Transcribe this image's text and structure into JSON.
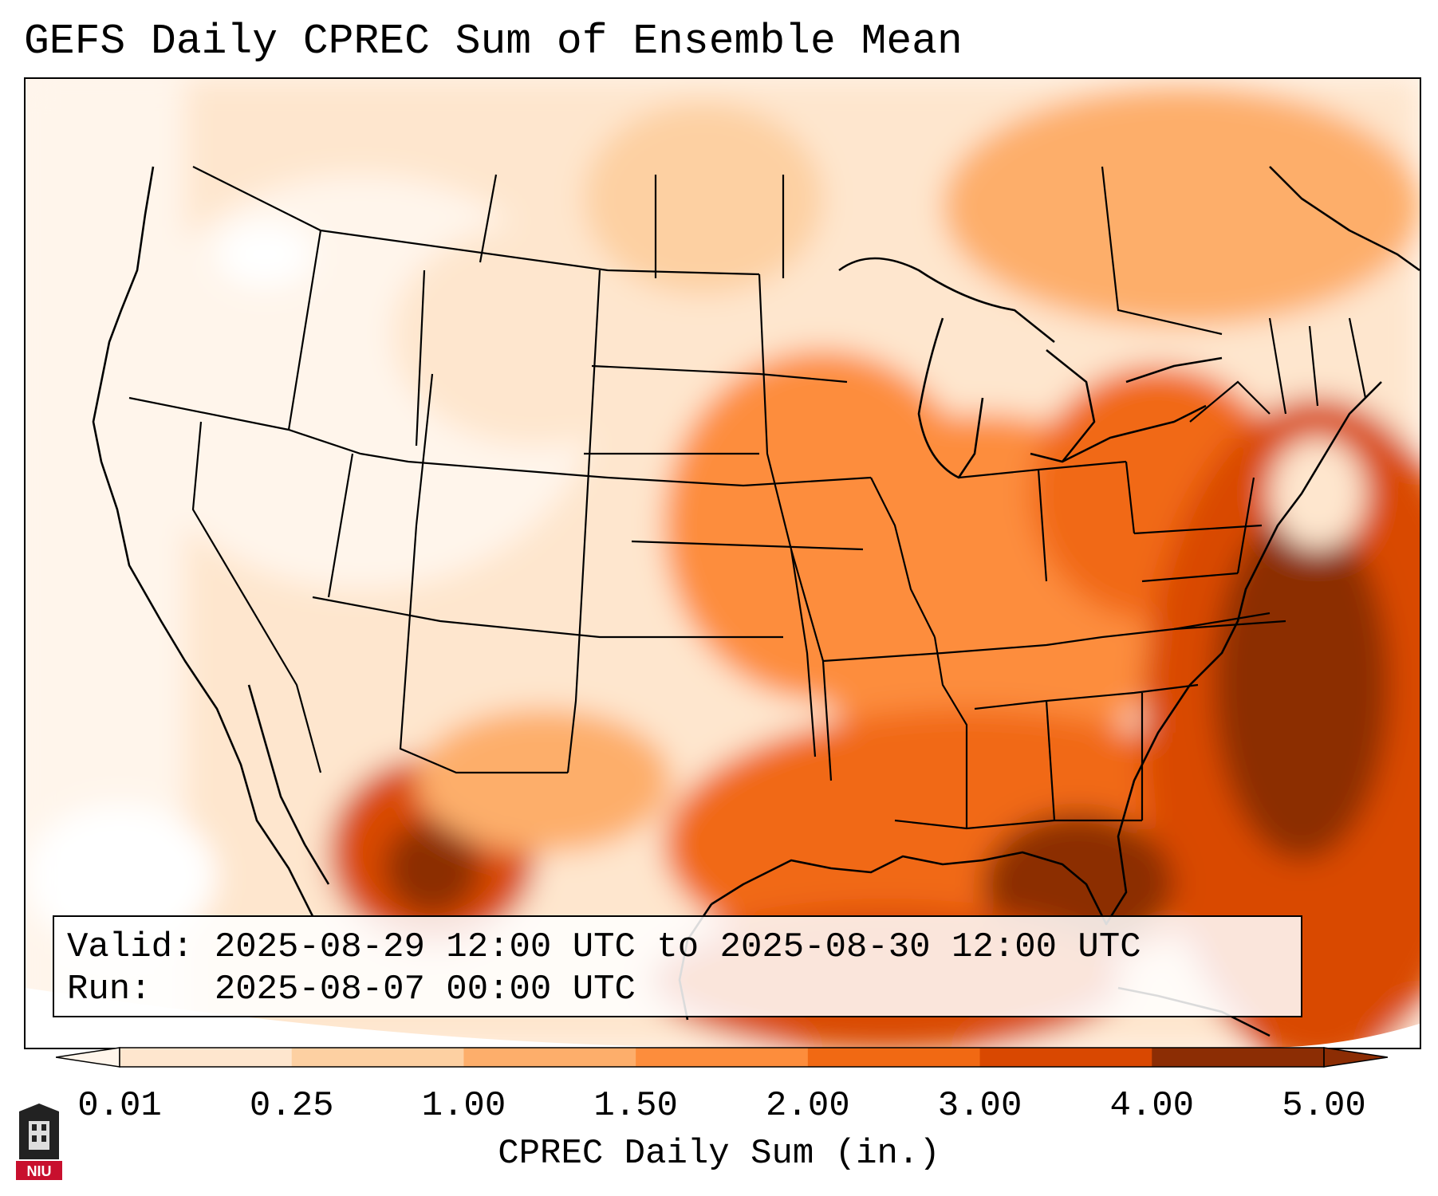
{
  "title": "GEFS Daily CPREC Sum of Ensemble Mean",
  "info": {
    "valid_label": "Valid:",
    "valid_value": "2025-08-29 12:00 UTC to 2025-08-30 12:00 UTC",
    "run_label": "Run:",
    "run_value": "2025-08-07 00:00 UTC"
  },
  "colorbar": {
    "label": "CPREC Daily Sum (in.)",
    "ticks": [
      "0.01",
      "0.25",
      "1.00",
      "1.50",
      "2.00",
      "3.00",
      "4.00",
      "5.00"
    ],
    "colors": [
      "#fff5eb",
      "#fee6ce",
      "#fdd0a2",
      "#fdae6b",
      "#fd8d3c",
      "#f16913",
      "#d94801",
      "#8c2d04"
    ]
  },
  "logo": {
    "text": "NIU"
  }
}
